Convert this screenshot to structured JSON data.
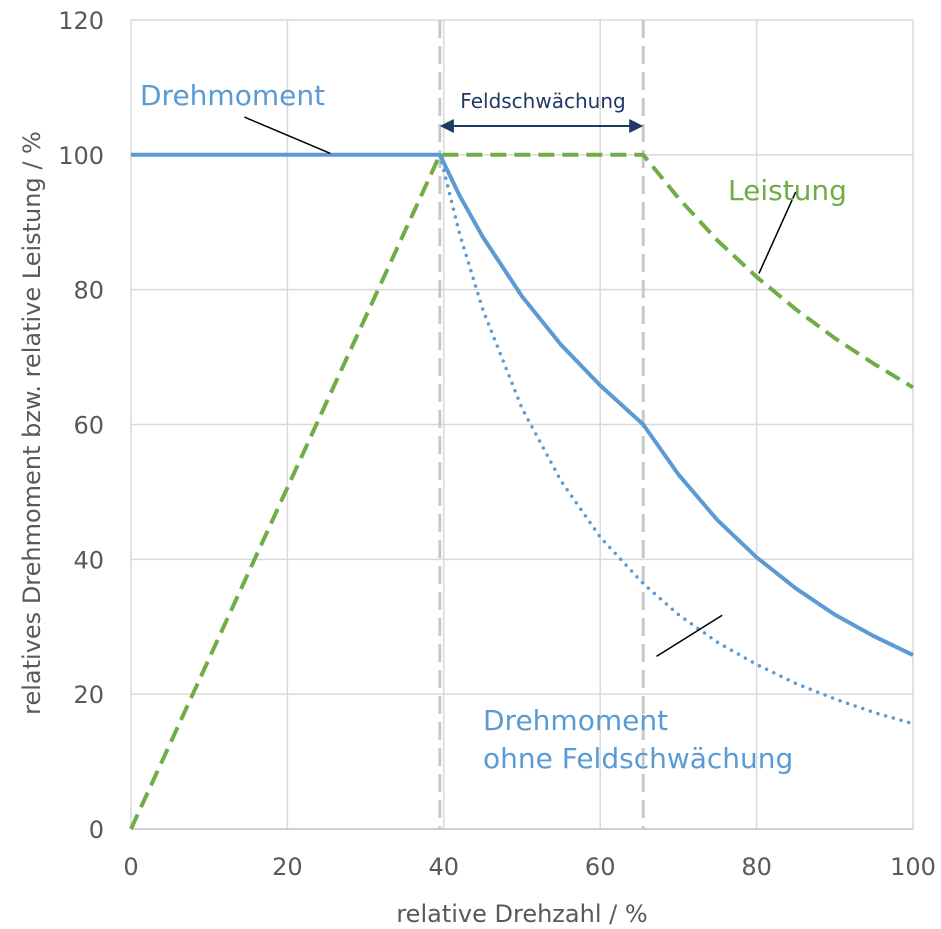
{
  "chart_data": {
    "type": "line",
    "xlabel": "relative Drehzahl / %",
    "ylabel": "relatives Drehmoment bzw. relative Leistung / %",
    "xlim": [
      0,
      100
    ],
    "ylim": [
      0,
      120
    ],
    "xticks": [
      0,
      20,
      40,
      60,
      80,
      100
    ],
    "yticks": [
      0,
      20,
      40,
      60,
      80,
      100,
      120
    ],
    "grid": true,
    "colors": {
      "torque": "#5b9bd5",
      "power": "#70ad47",
      "marker": "#c8c8c8",
      "arrow": "#1f3864",
      "grid": "#d9d9d9",
      "axis": "#bfbfbf"
    },
    "series": [
      {
        "key": "torque",
        "style": "solid",
        "x": [
          0,
          39.5,
          42,
          45,
          50,
          55,
          60,
          65.5,
          70,
          75,
          80,
          85,
          90,
          95,
          100
        ],
        "y": [
          100,
          100,
          94,
          87.8,
          79,
          71.8,
          65.8,
          60,
          52.6,
          45.8,
          40.3,
          35.7,
          31.8,
          28.6,
          25.8
        ]
      },
      {
        "key": "torque_no_fw",
        "style": "dotted",
        "x": [
          39.5,
          42,
          45,
          50,
          55,
          60,
          65.5,
          70,
          75,
          80,
          85,
          90,
          95,
          100
        ],
        "y": [
          100,
          88.4,
          77,
          62.4,
          51.6,
          43.3,
          36.4,
          31.8,
          27.7,
          24.4,
          21.6,
          19.3,
          17.3,
          15.6
        ]
      },
      {
        "key": "power",
        "style": "dashed",
        "x": [
          0,
          39.5,
          65.5,
          70,
          75,
          80,
          85,
          90,
          95,
          100
        ],
        "y": [
          0,
          100,
          100,
          93.6,
          87.3,
          81.9,
          77.1,
          72.8,
          69,
          65.5
        ]
      }
    ],
    "vlines": [
      39.5,
      65.5
    ],
    "annotations": {
      "drehmoment": "Drehmoment",
      "leistung": "Leistung",
      "ohne_line1": "Drehmoment",
      "ohne_line2": "ohne Feldschwächung",
      "feldschwaechung": "Feldschwächung"
    },
    "leader_lines": [
      {
        "from": [
          14.5,
          105.6
        ],
        "to": [
          25.5,
          100.2
        ]
      },
      {
        "from": [
          85,
          94.5
        ],
        "to": [
          80.3,
          82.4
        ]
      },
      {
        "from": [
          67.2,
          25.6
        ],
        "to": [
          75.6,
          31.7
        ]
      }
    ]
  }
}
